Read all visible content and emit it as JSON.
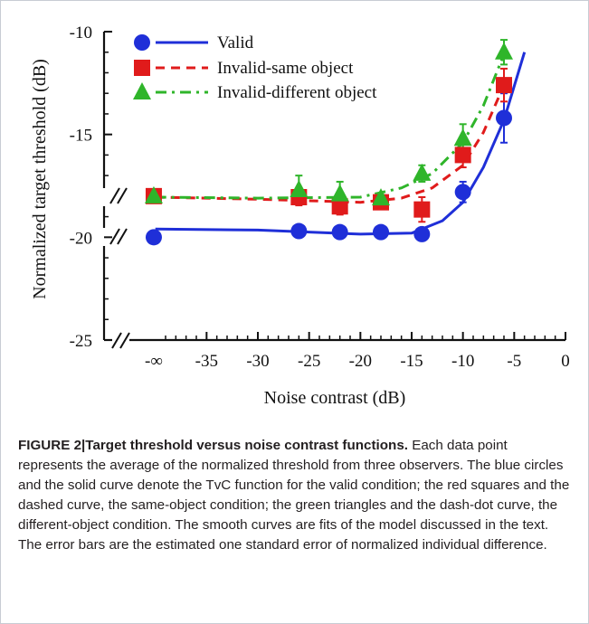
{
  "chart_data": {
    "type": "scatter",
    "title": "",
    "xlabel": "Noise contrast (dB)",
    "ylabel": "Normalized  target  threshold  (dB)",
    "xlim": [
      -45,
      0
    ],
    "ylim": [
      -25,
      -10
    ],
    "x_tick_values": [
      -40,
      -35,
      -30,
      -25,
      -20,
      -15,
      -10,
      -5,
      0
    ],
    "x_tick_labels": [
      "-∞",
      "-35",
      "-30",
      "-25",
      "-20",
      "-15",
      "-10",
      "-5",
      "0"
    ],
    "y_tick_values": [
      -25,
      -20,
      -15,
      -10
    ],
    "y_tick_labels": [
      "-25",
      "-20",
      "-15",
      "-10"
    ],
    "axis_breaks": true,
    "legend_position": "top-left",
    "grid": false,
    "series": [
      {
        "name": "Valid",
        "marker": "circle",
        "line": "solid",
        "color": "#1f2fd8",
        "points": [
          {
            "x": "-∞",
            "y": -20.0,
            "err": 0
          },
          {
            "x": -26,
            "y": -19.7,
            "err": 0
          },
          {
            "x": -22,
            "y": -19.75,
            "err": 0
          },
          {
            "x": -18,
            "y": -19.75,
            "err": 0
          },
          {
            "x": -14,
            "y": -19.85,
            "err": 0
          },
          {
            "x": -10,
            "y": -17.8,
            "err": 0.5
          },
          {
            "x": -6,
            "y": -14.2,
            "err": 1.2
          }
        ],
        "fit": [
          [
            -40,
            -19.6
          ],
          [
            -30,
            -19.65
          ],
          [
            -20,
            -19.85
          ],
          [
            -15,
            -19.8
          ],
          [
            -12,
            -19.2
          ],
          [
            -10,
            -18.3
          ],
          [
            -8,
            -16.6
          ],
          [
            -6,
            -14.3
          ],
          [
            -4,
            -11.0
          ]
        ]
      },
      {
        "name": "Invalid-same object",
        "marker": "square",
        "line": "dashed",
        "color": "#e01b1b",
        "points": [
          {
            "x": "-∞",
            "y": -18.0,
            "err": 0
          },
          {
            "x": -26,
            "y": -18.05,
            "err": 0.4
          },
          {
            "x": -22,
            "y": -18.5,
            "err": 0.4
          },
          {
            "x": -18,
            "y": -18.3,
            "err": 0
          },
          {
            "x": -14,
            "y": -18.65,
            "err": 0.6
          },
          {
            "x": -10,
            "y": -16.0,
            "err": 0.6
          },
          {
            "x": -6,
            "y": -12.6,
            "err": 0.8
          }
        ],
        "fit": [
          [
            -40,
            -18.05
          ],
          [
            -30,
            -18.15
          ],
          [
            -20,
            -18.3
          ],
          [
            -16,
            -18.1
          ],
          [
            -13,
            -17.6
          ],
          [
            -10,
            -16.5
          ],
          [
            -8,
            -14.9
          ],
          [
            -6,
            -12.6
          ]
        ]
      },
      {
        "name": "Invalid-different object",
        "marker": "triangle",
        "line": "dash-dot",
        "color": "#2fb52a",
        "points": [
          {
            "x": "-∞",
            "y": -18.0,
            "err": 0
          },
          {
            "x": -26,
            "y": -17.7,
            "err": 0.7
          },
          {
            "x": -22,
            "y": -17.9,
            "err": 0.6
          },
          {
            "x": -18,
            "y": -18.1,
            "err": 0
          },
          {
            "x": -14,
            "y": -16.9,
            "err": 0.4
          },
          {
            "x": -10,
            "y": -15.2,
            "err": 0.7
          },
          {
            "x": -6,
            "y": -11.0,
            "err": 0.6
          }
        ],
        "fit": [
          [
            -40,
            -18.05
          ],
          [
            -30,
            -18.1
          ],
          [
            -20,
            -18.05
          ],
          [
            -16,
            -17.6
          ],
          [
            -13,
            -16.9
          ],
          [
            -10,
            -15.4
          ],
          [
            -8,
            -13.6
          ],
          [
            -6,
            -11.1
          ]
        ]
      }
    ]
  },
  "caption": {
    "label": "FIGURE 2",
    "separator": "|",
    "head": "Target threshold versus noise contrast functions.",
    "body": " Each data point represents the average of the normalized threshold from three observers. The blue circles and the solid curve denote the TvC function for the valid condition; the red squares and the dashed curve, the same-object condition; the green triangles and the dash-dot curve, the different-object condition. The smooth curves are fits of the model discussed in the text. The error bars are the estimated one standard error of normalized individual difference."
  }
}
